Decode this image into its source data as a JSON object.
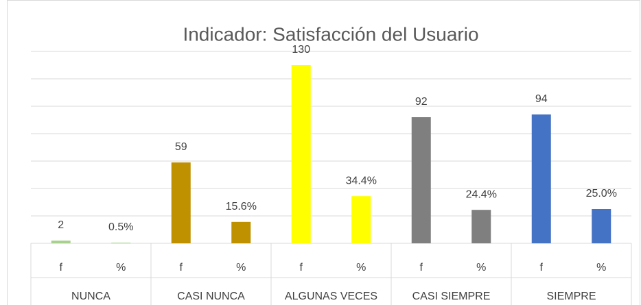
{
  "chart_data": {
    "type": "bar",
    "title": "Indicador: Satisfacción del Usuario",
    "groups": [
      "NUNCA",
      "CASI NUNCA",
      "ALGUNAS VECES",
      "CASI SIEMPRE",
      "SIEMPRE"
    ],
    "categories": [
      "f",
      "%",
      "f",
      "%",
      "f",
      "%",
      "f",
      "%",
      "f",
      "%"
    ],
    "values": [
      2,
      0.5,
      59,
      15.6,
      130,
      34.4,
      92,
      24.4,
      94,
      25.0
    ],
    "value_labels": [
      "2",
      "0.5%",
      "59",
      "15.6%",
      "130",
      "34.4%",
      "92",
      "24.4%",
      "94",
      "25.0%"
    ],
    "colors": [
      "#a9d18e",
      "#a9d18e",
      "#bf9000",
      "#bf9000",
      "#ffff00",
      "#ffff00",
      "#7f7f7f",
      "#7f7f7f",
      "#4472c4",
      "#4472c4"
    ],
    "ylim": [
      0,
      140
    ],
    "yticks": [
      0,
      20,
      40,
      60,
      80,
      100,
      120,
      140
    ],
    "grid": true
  }
}
